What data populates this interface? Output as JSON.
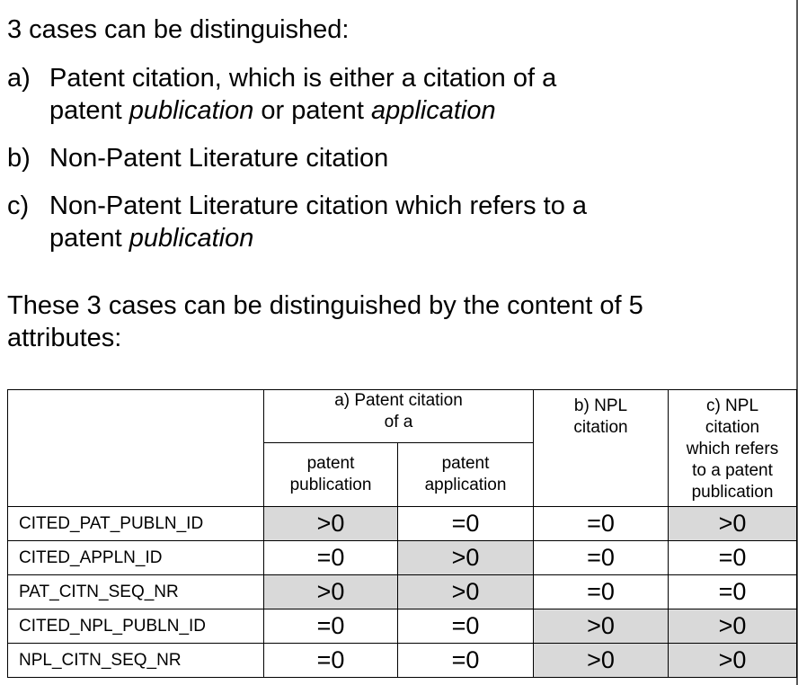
{
  "intro": "3 cases can be distinguished:",
  "cases": [
    {
      "marker": "a)",
      "line1": "Patent citation, which is either a citation of a",
      "line2_pre": "patent ",
      "line2_em1": "publication",
      "line2_mid": " or patent ",
      "line2_em2": "application"
    },
    {
      "marker": "b)",
      "line1": "Non-Patent Literature citation"
    },
    {
      "marker": "c)",
      "line1": "Non-Patent Literature citation which refers to a",
      "line2_pre": "patent ",
      "line2_em1": "publication"
    }
  ],
  "paragraph": {
    "line1": "These 3 cases can be distinguished by the content of 5",
    "line2": "attributes:"
  },
  "table": {
    "header": {
      "group_a_line1": "a) Patent citation",
      "group_a_line2": "of a",
      "sub_publication_line1": "patent",
      "sub_publication_line2": "publication",
      "sub_application_line1": "patent",
      "sub_application_line2": "application",
      "b_line1": "b) NPL",
      "b_line2": "citation",
      "c_line1": "c) NPL",
      "c_line2": "citation",
      "c_line3": "which refers",
      "c_line4": "to a patent",
      "c_line5": "publication"
    },
    "rows": [
      {
        "name": "CITED_PAT_PUBLN_ID",
        "values": [
          ">0",
          "=0",
          "=0",
          ">0"
        ],
        "shaded": [
          true,
          false,
          false,
          true
        ]
      },
      {
        "name": "CITED_APPLN_ID",
        "values": [
          "=0",
          ">0",
          "=0",
          "=0"
        ],
        "shaded": [
          false,
          true,
          false,
          false
        ]
      },
      {
        "name": "PAT_CITN_SEQ_NR",
        "values": [
          ">0",
          ">0",
          "=0",
          "=0"
        ],
        "shaded": [
          true,
          true,
          false,
          false
        ]
      },
      {
        "name": "CITED_NPL_PUBLN_ID",
        "values": [
          "=0",
          "=0",
          ">0",
          ">0"
        ],
        "shaded": [
          false,
          false,
          true,
          true
        ]
      },
      {
        "name": "NPL_CITN_SEQ_NR",
        "values": [
          "=0",
          "=0",
          ">0",
          ">0"
        ],
        "shaded": [
          false,
          false,
          true,
          true
        ]
      }
    ]
  },
  "colors": {
    "shade": "#d9d9d9",
    "border": "#000000",
    "right_rule": "#5a5a5a"
  }
}
